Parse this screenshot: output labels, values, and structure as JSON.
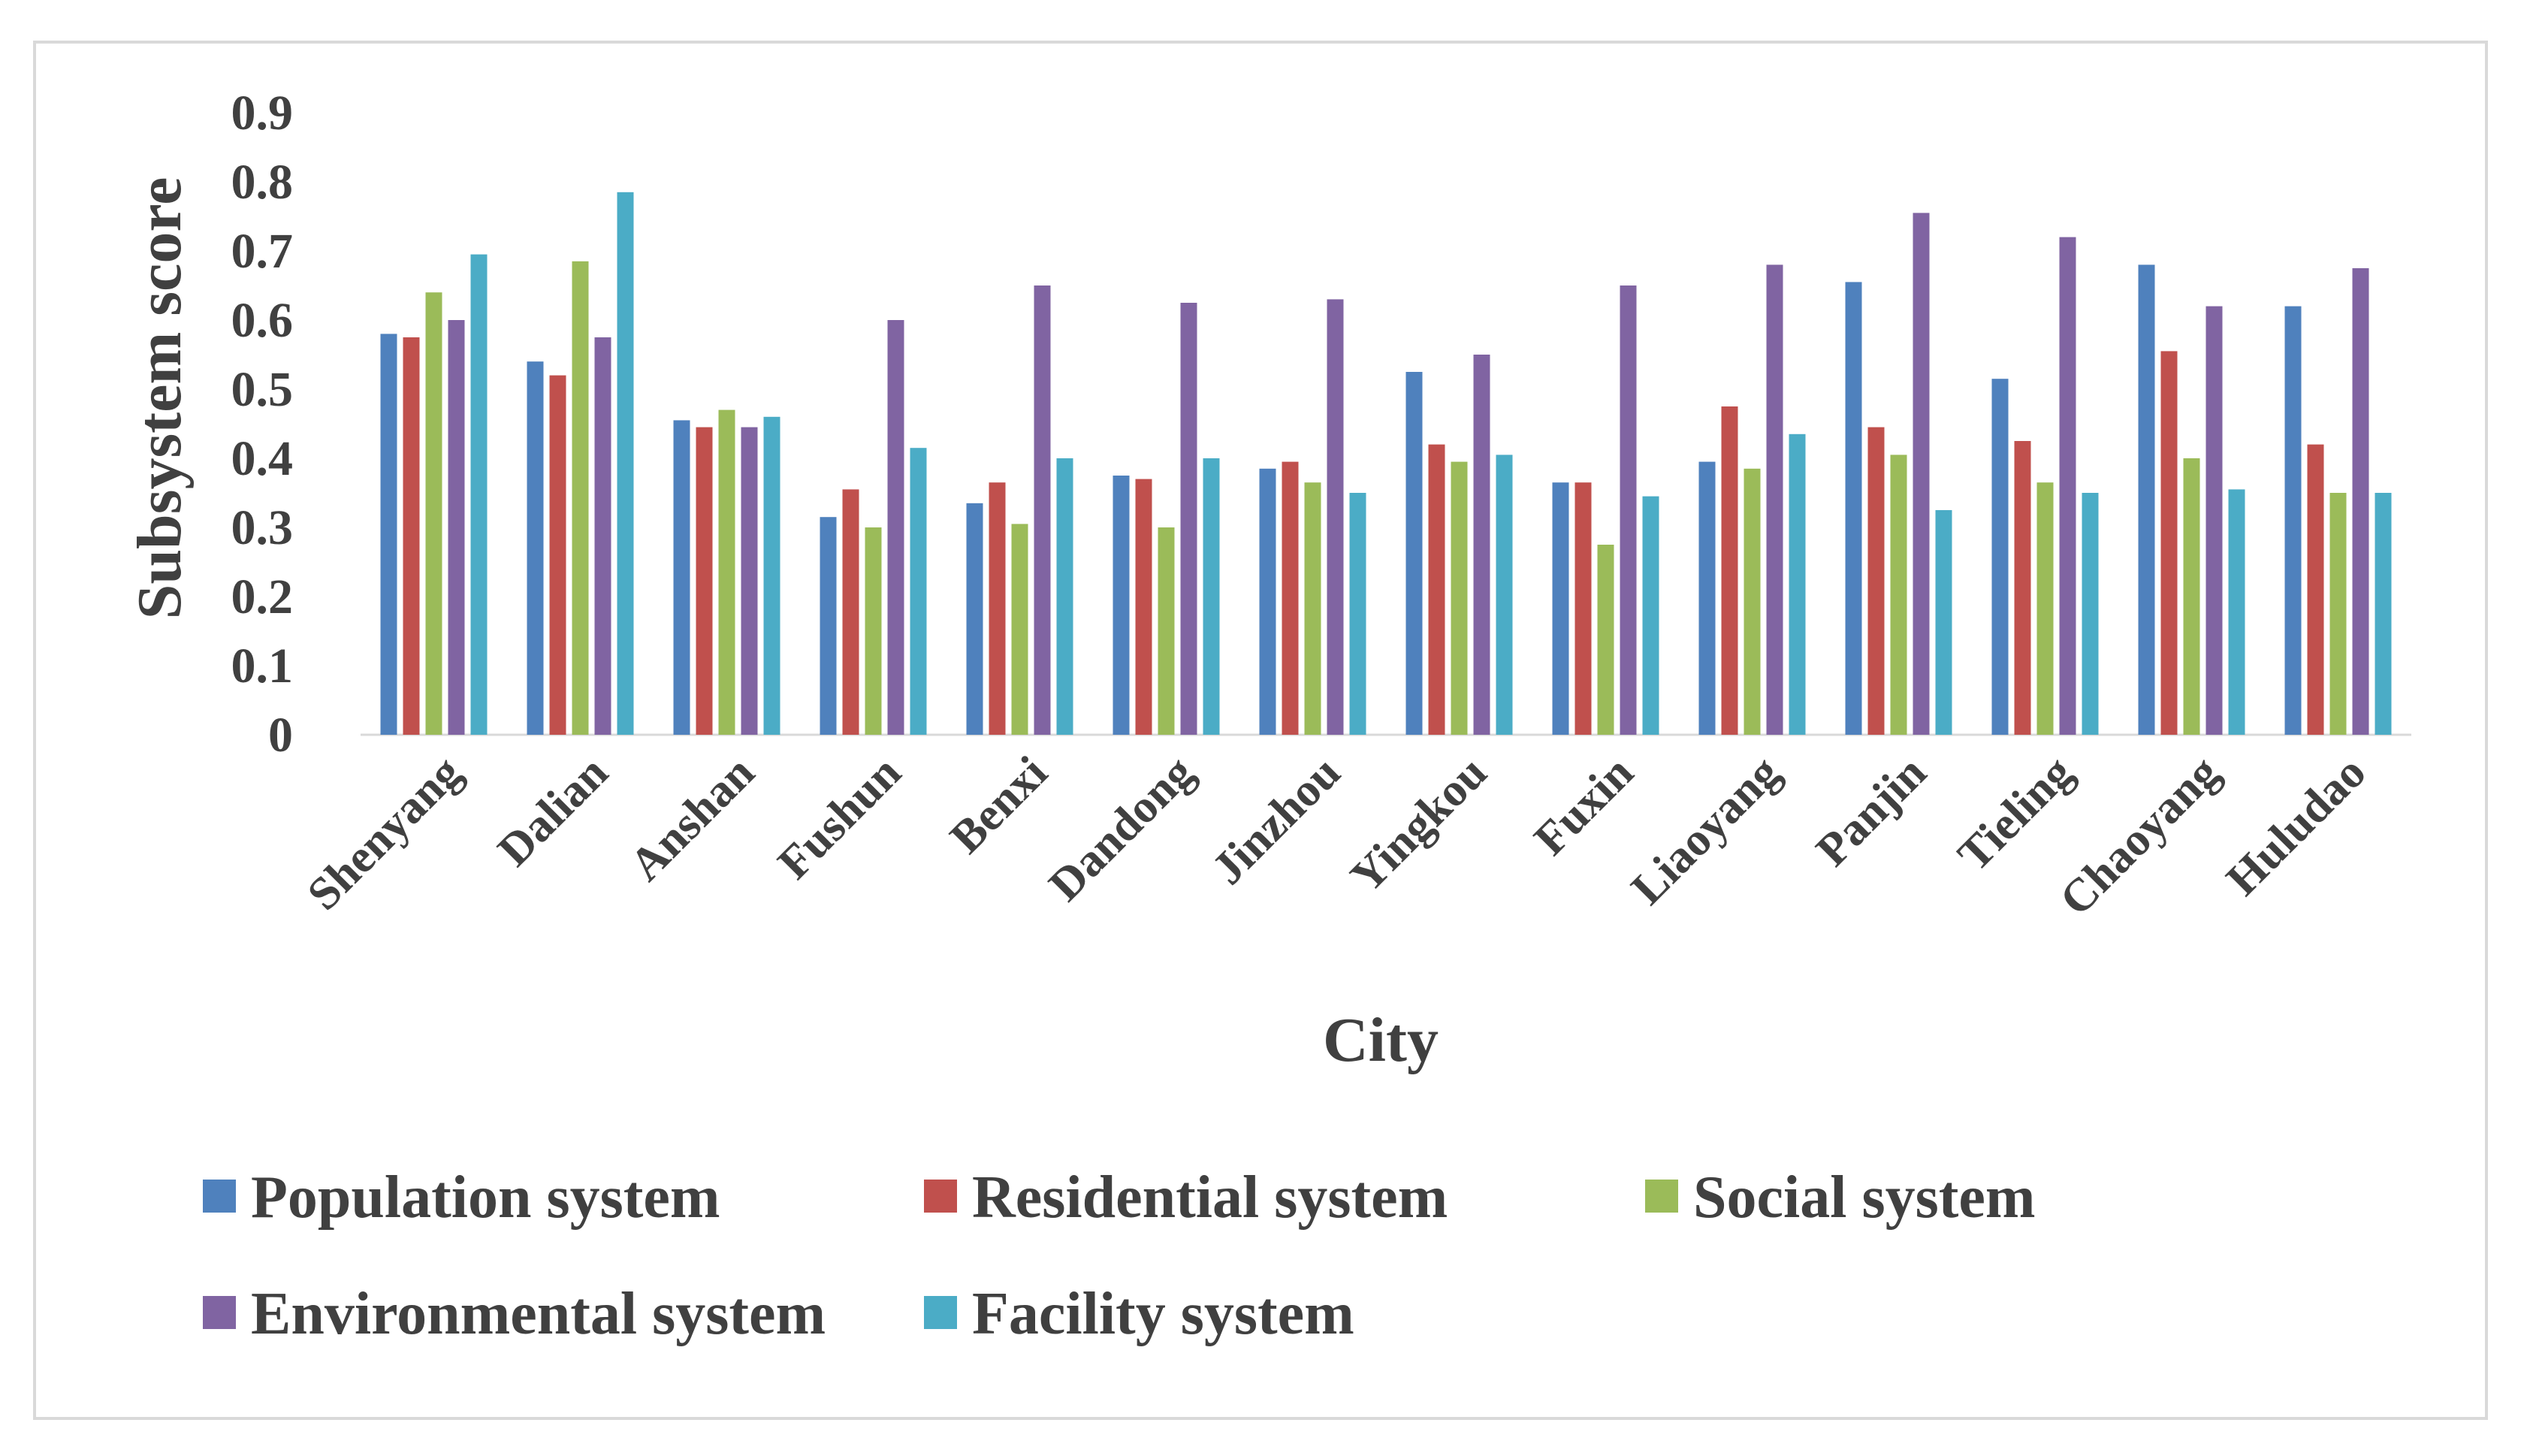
{
  "chart_data": {
    "type": "bar",
    "xlabel": "City",
    "ylabel": "Subsystem  score",
    "ylim": [
      0,
      0.9
    ],
    "yticks": [
      "0",
      "0.1",
      "0.2",
      "0.3",
      "0.4",
      "0.5",
      "0.6",
      "0.7",
      "0.8",
      "0.9"
    ],
    "grid": false,
    "legend_position": "bottom",
    "categories": [
      "Shenyang",
      "Dalian",
      "Anshan",
      "Fushun",
      "Benxi",
      "Dandong",
      "Jinzhou",
      "Yingkou",
      "Fuxin",
      "Liaoyang",
      "Panjin",
      "Tieling",
      "Chaoyang",
      "Huludao"
    ],
    "series": [
      {
        "name": "Population system",
        "color": "#4f81bd",
        "values": [
          0.58,
          0.54,
          0.455,
          0.315,
          0.335,
          0.375,
          0.385,
          0.525,
          0.365,
          0.395,
          0.655,
          0.515,
          0.68,
          0.62
        ]
      },
      {
        "name": "Residential system",
        "color": "#c0504d",
        "values": [
          0.575,
          0.52,
          0.445,
          0.355,
          0.365,
          0.37,
          0.395,
          0.42,
          0.365,
          0.475,
          0.445,
          0.425,
          0.555,
          0.42
        ]
      },
      {
        "name": "Social system",
        "color": "#9bbb59",
        "values": [
          0.64,
          0.685,
          0.47,
          0.3,
          0.305,
          0.3,
          0.365,
          0.395,
          0.275,
          0.385,
          0.405,
          0.365,
          0.4,
          0.35
        ]
      },
      {
        "name": "Environmental system",
        "color": "#8064a2",
        "values": [
          0.6,
          0.575,
          0.445,
          0.6,
          0.65,
          0.625,
          0.63,
          0.55,
          0.65,
          0.68,
          0.755,
          0.72,
          0.62,
          0.675
        ]
      },
      {
        "name": "Facility system",
        "color": "#4bacc6",
        "values": [
          0.695,
          0.785,
          0.46,
          0.415,
          0.4,
          0.4,
          0.35,
          0.405,
          0.345,
          0.435,
          0.325,
          0.35,
          0.355,
          0.35
        ]
      }
    ]
  }
}
